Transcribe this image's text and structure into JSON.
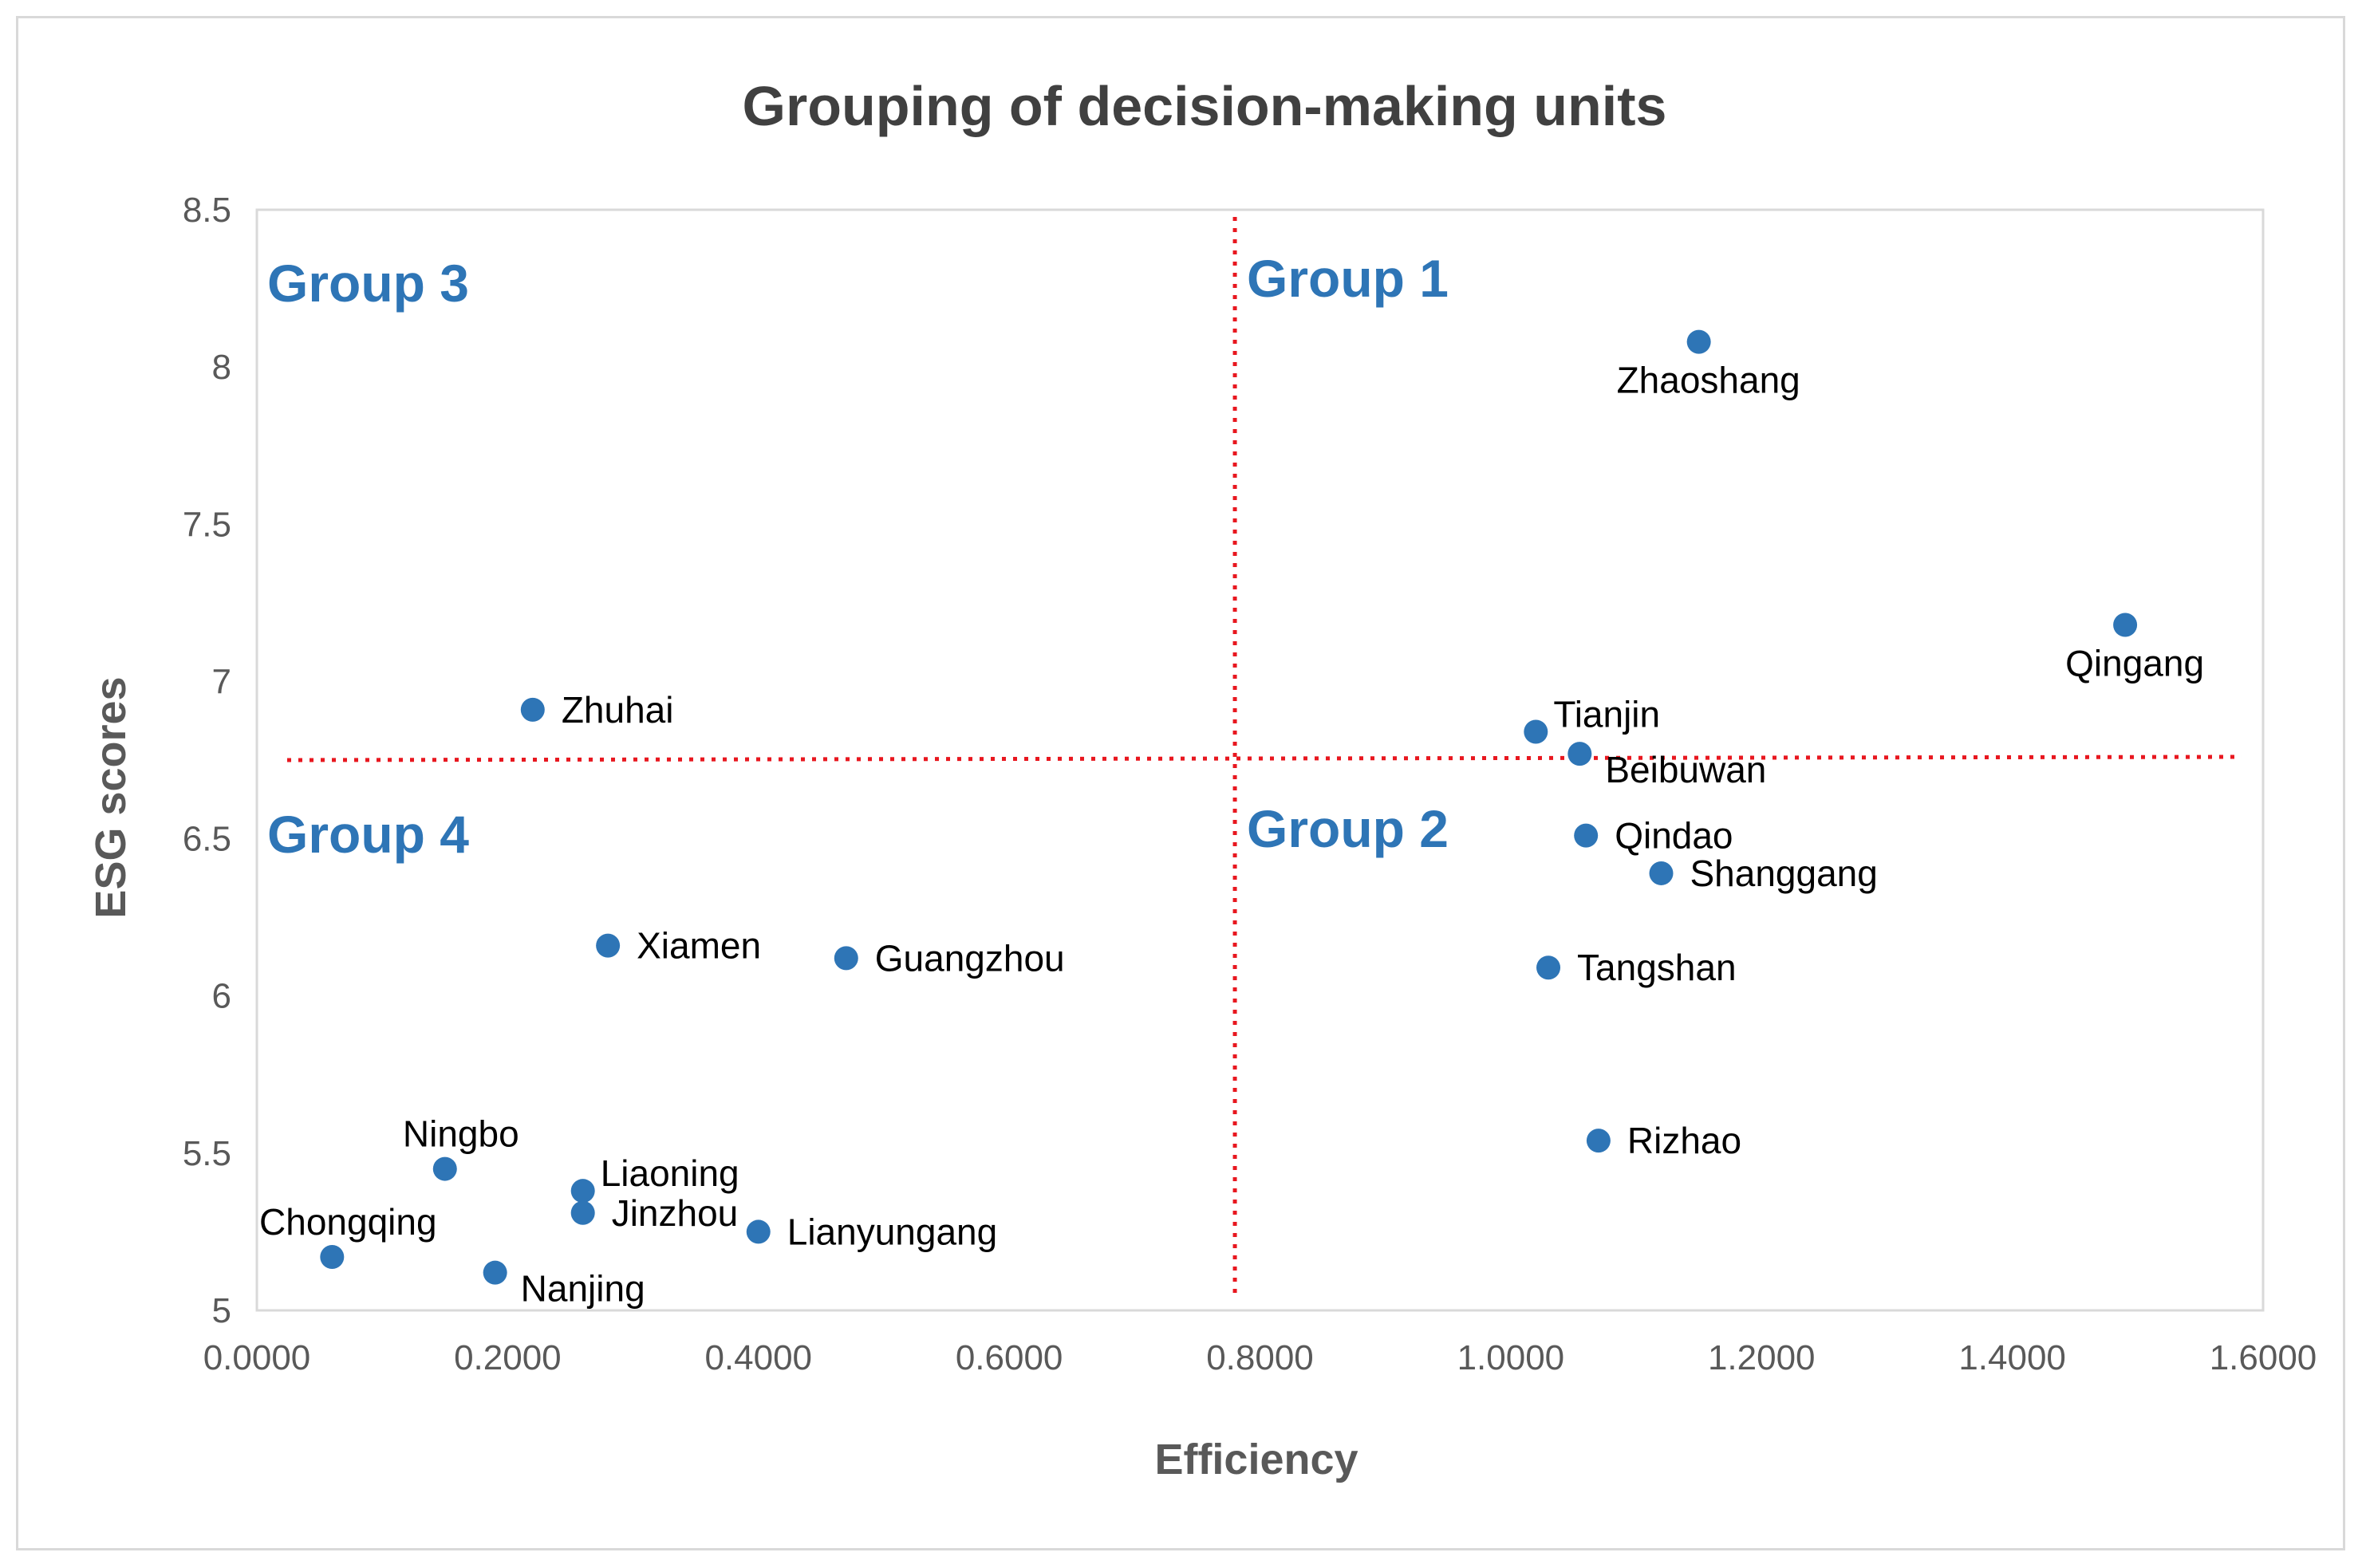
{
  "chart_data": {
    "type": "scatter",
    "title": "Grouping of decision-making units",
    "xlabel": "Efficiency",
    "ylabel": "ESG scores",
    "xlim": [
      0.0,
      1.6
    ],
    "ylim": [
      5,
      8.5
    ],
    "x_ticks": [
      "0.0000",
      "0.2000",
      "0.4000",
      "0.6000",
      "0.8000",
      "1.0000",
      "1.2000",
      "1.4000",
      "1.6000"
    ],
    "y_ticks": [
      "5",
      "5.5",
      "6",
      "6.5",
      "7",
      "7.5",
      "8",
      "8.5"
    ],
    "grid": false,
    "marker_color": "#2e75b6",
    "divider_color": "#e8171f",
    "dividers": {
      "x": 0.78,
      "y": 6.75
    },
    "groups": [
      {
        "label": "Group 1",
        "quadrant": "top-right"
      },
      {
        "label": "Group 2",
        "quadrant": "bottom-right"
      },
      {
        "label": "Group 3",
        "quadrant": "top-left"
      },
      {
        "label": "Group 4",
        "quadrant": "bottom-left"
      }
    ],
    "points": [
      {
        "name": "Zhaoshang",
        "x": 1.15,
        "y": 8.08,
        "label_pos": "below"
      },
      {
        "name": "Qingang",
        "x": 1.49,
        "y": 7.18,
        "label_pos": "below"
      },
      {
        "name": "Tianjin",
        "x": 1.02,
        "y": 6.84,
        "label_pos": "right-up"
      },
      {
        "name": "Beibuwan",
        "x": 1.055,
        "y": 6.77,
        "label_pos": "right-down"
      },
      {
        "name": "Qindao",
        "x": 1.06,
        "y": 6.51,
        "label_pos": "right"
      },
      {
        "name": "Shanggang",
        "x": 1.12,
        "y": 6.39,
        "label_pos": "right"
      },
      {
        "name": "Tangshan",
        "x": 1.03,
        "y": 6.09,
        "label_pos": "right"
      },
      {
        "name": "Rizhao",
        "x": 1.07,
        "y": 5.54,
        "label_pos": "right"
      },
      {
        "name": "Zhuhai",
        "x": 0.22,
        "y": 6.91,
        "label_pos": "right"
      },
      {
        "name": "Xiamen",
        "x": 0.28,
        "y": 6.16,
        "label_pos": "right"
      },
      {
        "name": "Guangzhou",
        "x": 0.47,
        "y": 6.12,
        "label_pos": "right"
      },
      {
        "name": "Ningbo",
        "x": 0.15,
        "y": 5.45,
        "label_pos": "above"
      },
      {
        "name": "Liaoning",
        "x": 0.26,
        "y": 5.38,
        "label_pos": "right-up"
      },
      {
        "name": "Jinzhou",
        "x": 0.26,
        "y": 5.31,
        "label_pos": "right"
      },
      {
        "name": "Lianyungang",
        "x": 0.4,
        "y": 5.25,
        "label_pos": "right"
      },
      {
        "name": "Chongqing",
        "x": 0.06,
        "y": 5.17,
        "label_pos": "above"
      },
      {
        "name": "Nanjing",
        "x": 0.19,
        "y": 5.12,
        "label_pos": "right-down"
      }
    ]
  }
}
